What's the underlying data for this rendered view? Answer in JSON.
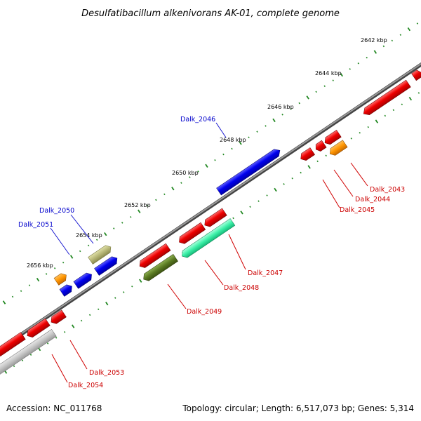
{
  "title": "Desulfatibacillum alkenivorans AK-01, complete genome",
  "footer": {
    "accession": "Accession: NC_011768",
    "summary": "Topology: circular; Length: 6,517,073 bp; Genes: 5,314"
  },
  "scale_labels": [
    "2642 kbp",
    "2644 kbp",
    "2646 kbp",
    "2648 kbp",
    "2650 kbp",
    "2652 kbp",
    "2654 kbp",
    "2656 kbp"
  ],
  "gene_labels": [
    {
      "id": "dalk_2046",
      "text": "Dalk_2046",
      "strand": "forward",
      "color": "#0000cc"
    },
    {
      "id": "dalk_2050",
      "text": "Dalk_2050",
      "strand": "forward",
      "color": "#0000cc"
    },
    {
      "id": "dalk_2051",
      "text": "Dalk_2051",
      "strand": "forward",
      "color": "#0000cc"
    },
    {
      "id": "dalk_2043",
      "text": "Dalk_2043",
      "strand": "reverse",
      "color": "#cc0000"
    },
    {
      "id": "dalk_2044",
      "text": "Dalk_2044",
      "strand": "reverse",
      "color": "#cc0000"
    },
    {
      "id": "dalk_2045",
      "text": "Dalk_2045",
      "strand": "reverse",
      "color": "#cc0000"
    },
    {
      "id": "dalk_2047",
      "text": "Dalk_2047",
      "strand": "reverse",
      "color": "#cc0000"
    },
    {
      "id": "dalk_2048",
      "text": "Dalk_2048",
      "strand": "reverse",
      "color": "#cc0000"
    },
    {
      "id": "dalk_2049",
      "text": "Dalk_2049",
      "strand": "reverse",
      "color": "#cc0000"
    },
    {
      "id": "dalk_2053",
      "text": "Dalk_2053",
      "strand": "reverse",
      "color": "#cc0000"
    },
    {
      "id": "dalk_2054",
      "text": "Dalk_2054",
      "strand": "reverse",
      "color": "#cc0000"
    }
  ],
  "colors": {
    "backbone": "#777777",
    "forward_cds": "#0000ee",
    "reverse_cds": "#ee0000",
    "rna": "#77cc99",
    "other": "#aaaa66",
    "tick_major": "#228822",
    "tick_minor": "#226622"
  }
}
